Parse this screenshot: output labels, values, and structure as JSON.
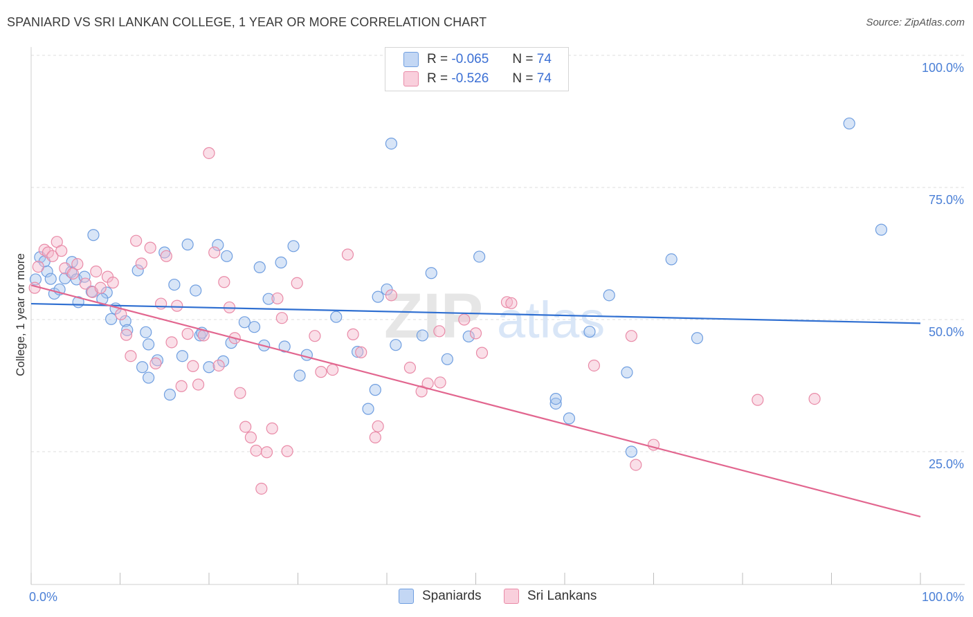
{
  "title": "SPANIARD VS SRI LANKAN COLLEGE, 1 YEAR OR MORE CORRELATION CHART",
  "source": "Source: ZipAtlas.com",
  "watermark": {
    "zip": "ZIP",
    "atlas": "atlas"
  },
  "legend": {
    "r_label": "R =",
    "n_label": "N =",
    "rows": [
      {
        "name": "Spaniards",
        "r": "-0.065",
        "n": "74"
      },
      {
        "name": "Sri Lankans",
        "r": "-0.526",
        "n": "74"
      }
    ]
  },
  "colors": {
    "blue_fill": "#a9c6ee",
    "blue_stroke": "#6f9ee0",
    "blue_line": "#2f6fd1",
    "pink_fill": "#f5b9cc",
    "pink_stroke": "#e98aa7",
    "pink_line": "#e2668f",
    "axis_text": "#4a7fd6",
    "grid": "#dcdcdc"
  },
  "chart_data": {
    "type": "scatter",
    "title": "SPANIARD VS SRI LANKAN COLLEGE, 1 YEAR OR MORE CORRELATION CHART",
    "xlabel": "",
    "ylabel": "College, 1 year or more",
    "xlim": [
      0,
      100
    ],
    "ylim": [
      0,
      105
    ],
    "x_tick_labels": [
      {
        "value": 0,
        "label": "0.0%"
      },
      {
        "value": 100,
        "label": "100.0%"
      }
    ],
    "y_tick_labels": [
      {
        "value": 25,
        "label": "25.0%"
      },
      {
        "value": 50,
        "label": "50.0%"
      },
      {
        "value": 75,
        "label": "75.0%"
      },
      {
        "value": 100,
        "label": "100.0%"
      }
    ],
    "series": [
      {
        "name": "Spaniards",
        "color": "#6f9ee0",
        "trend": {
          "x": [
            0,
            100
          ],
          "y": [
            53.0,
            49.3
          ]
        },
        "points": [
          [
            0.5,
            57.6
          ],
          [
            1,
            61.8
          ],
          [
            1.5,
            61.0
          ],
          [
            1.8,
            59.1
          ],
          [
            2.2,
            57.7
          ],
          [
            2.6,
            54.9
          ],
          [
            3.2,
            55.7
          ],
          [
            3.8,
            57.8
          ],
          [
            4.5,
            59.0
          ],
          [
            5.3,
            53.3
          ],
          [
            4.6,
            60.9
          ],
          [
            5.1,
            57.6
          ],
          [
            6.0,
            58.1
          ],
          [
            6.8,
            55.3
          ],
          [
            7.0,
            66.0
          ],
          [
            8.5,
            55.1
          ],
          [
            8.0,
            53.9
          ],
          [
            9.5,
            52.1
          ],
          [
            9.0,
            50.1
          ],
          [
            10.6,
            49.7
          ],
          [
            10.8,
            48.0
          ],
          [
            12.0,
            59.3
          ],
          [
            12.9,
            47.6
          ],
          [
            13.2,
            45.3
          ],
          [
            14.2,
            42.3
          ],
          [
            15.0,
            62.7
          ],
          [
            15.6,
            35.8
          ],
          [
            16.1,
            56.6
          ],
          [
            17.0,
            43.1
          ],
          [
            18.5,
            55.5
          ],
          [
            17.6,
            64.2
          ],
          [
            19.0,
            47.0
          ],
          [
            20.0,
            41.0
          ],
          [
            21.0,
            64.1
          ],
          [
            22.0,
            62.0
          ],
          [
            21.6,
            42.1
          ],
          [
            22.5,
            45.6
          ],
          [
            24.0,
            49.5
          ],
          [
            25.7,
            59.9
          ],
          [
            26.7,
            53.9
          ],
          [
            26.2,
            45.1
          ],
          [
            28.1,
            60.8
          ],
          [
            28.5,
            44.9
          ],
          [
            29.5,
            63.9
          ],
          [
            31.0,
            43.3
          ],
          [
            34.3,
            50.5
          ],
          [
            36.7,
            43.9
          ],
          [
            37.9,
            33.1
          ],
          [
            38.7,
            36.7
          ],
          [
            39.0,
            54.3
          ],
          [
            40.5,
            83.3
          ],
          [
            41.0,
            45.2
          ],
          [
            40.0,
            55.7
          ],
          [
            45.0,
            58.8
          ],
          [
            46.8,
            42.5
          ],
          [
            44.0,
            47.0
          ],
          [
            49.2,
            46.8
          ],
          [
            50.4,
            61.9
          ],
          [
            59.0,
            34.1
          ],
          [
            59.0,
            35.0
          ],
          [
            60.5,
            31.3
          ],
          [
            62.8,
            47.7
          ],
          [
            65.0,
            54.6
          ],
          [
            67.0,
            40.0
          ],
          [
            67.5,
            25.0
          ],
          [
            72.0,
            61.4
          ],
          [
            74.9,
            46.5
          ],
          [
            92.0,
            87.1
          ],
          [
            95.6,
            67.0
          ],
          [
            12.5,
            41.0
          ],
          [
            25.1,
            48.6
          ],
          [
            30.2,
            39.4
          ],
          [
            13.2,
            39.0
          ],
          [
            19.2,
            47.5
          ]
        ]
      },
      {
        "name": "Sri Lankans",
        "color": "#e98aa7",
        "trend": {
          "x": [
            0,
            100
          ],
          "y": [
            56.5,
            12.7
          ]
        },
        "points": [
          [
            0.4,
            56.0
          ],
          [
            0.8,
            60.0
          ],
          [
            1.5,
            63.2
          ],
          [
            1.9,
            62.7
          ],
          [
            2.4,
            62.0
          ],
          [
            2.9,
            64.7
          ],
          [
            3.4,
            63.0
          ],
          [
            3.8,
            59.7
          ],
          [
            4.7,
            58.7
          ],
          [
            5.2,
            60.5
          ],
          [
            6.1,
            56.8
          ],
          [
            6.9,
            55.2
          ],
          [
            7.3,
            59.1
          ],
          [
            7.8,
            56.0
          ],
          [
            8.6,
            58.1
          ],
          [
            9.2,
            57.0
          ],
          [
            10.1,
            51.0
          ],
          [
            10.7,
            47.1
          ],
          [
            11.2,
            43.1
          ],
          [
            11.8,
            64.9
          ],
          [
            12.4,
            60.6
          ],
          [
            13.4,
            63.6
          ],
          [
            14.0,
            41.7
          ],
          [
            14.6,
            53.0
          ],
          [
            15.2,
            62.0
          ],
          [
            15.8,
            45.7
          ],
          [
            16.4,
            52.6
          ],
          [
            16.9,
            37.4
          ],
          [
            17.6,
            47.3
          ],
          [
            18.2,
            41.2
          ],
          [
            18.8,
            37.7
          ],
          [
            19.4,
            47.0
          ],
          [
            20.0,
            81.5
          ],
          [
            20.6,
            62.7
          ],
          [
            21.1,
            41.3
          ],
          [
            21.7,
            57.1
          ],
          [
            22.3,
            52.3
          ],
          [
            22.9,
            46.5
          ],
          [
            23.5,
            36.1
          ],
          [
            24.1,
            29.7
          ],
          [
            24.7,
            27.7
          ],
          [
            25.3,
            25.2
          ],
          [
            25.9,
            18.0
          ],
          [
            26.5,
            24.9
          ],
          [
            27.1,
            29.4
          ],
          [
            27.7,
            54.0
          ],
          [
            28.2,
            50.3
          ],
          [
            28.8,
            25.1
          ],
          [
            29.9,
            56.9
          ],
          [
            31.9,
            46.9
          ],
          [
            32.6,
            40.1
          ],
          [
            33.9,
            40.5
          ],
          [
            35.6,
            62.3
          ],
          [
            36.2,
            47.2
          ],
          [
            37.1,
            43.8
          ],
          [
            38.7,
            27.7
          ],
          [
            39.0,
            29.8
          ],
          [
            40.5,
            54.6
          ],
          [
            42.6,
            40.9
          ],
          [
            43.9,
            36.4
          ],
          [
            44.6,
            37.9
          ],
          [
            45.9,
            47.8
          ],
          [
            46.0,
            38.1
          ],
          [
            48.7,
            50.0
          ],
          [
            50.0,
            47.4
          ],
          [
            50.7,
            43.7
          ],
          [
            53.5,
            53.3
          ],
          [
            54.0,
            53.1
          ],
          [
            63.3,
            41.3
          ],
          [
            67.5,
            46.9
          ],
          [
            70.0,
            26.3
          ],
          [
            81.7,
            34.8
          ],
          [
            68.0,
            22.5
          ],
          [
            88.1,
            35.0
          ]
        ]
      }
    ]
  }
}
